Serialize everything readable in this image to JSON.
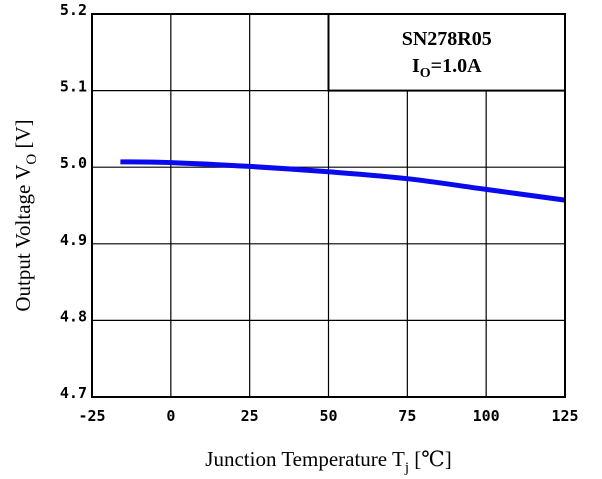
{
  "chart_data": {
    "type": "line",
    "xlabel": "Junction Temperature T",
    "xlabel_sub": "j",
    "xlabel_unit": " [℃]",
    "ylabel": "Output Voltage V",
    "ylabel_sub": "O",
    "ylabel_unit": " [V]",
    "xlim": [
      -25,
      125
    ],
    "ylim": [
      4.7,
      5.2
    ],
    "x_ticks": [
      "-25",
      "0",
      "25",
      "50",
      "75",
      "100",
      "125"
    ],
    "y_ticks": [
      "4.7",
      "4.8",
      "4.9",
      "5.0",
      "5.1",
      "5.2"
    ],
    "grid": true,
    "legend": {
      "line1": "SN278R05",
      "line2_main": "I",
      "line2_sub": "O",
      "line2_rest": "=1.0A",
      "placement": "top-right"
    },
    "series": [
      {
        "color": "#0a0aee",
        "x": [
          -16,
          0,
          25,
          50,
          75,
          100,
          125
        ],
        "y": [
          5.007,
          5.006,
          5.001,
          4.994,
          4.985,
          4.971,
          4.957
        ]
      }
    ]
  }
}
